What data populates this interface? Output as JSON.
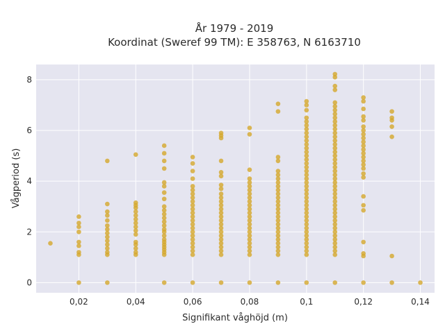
{
  "chart_data": {
    "type": "scatter",
    "title": "År 1979 - 2019",
    "subtitle": "Koordinat (Sweref 99 TM): E 358763, N 6163710",
    "xlabel": "Signifikant våghöjd (m)",
    "ylabel": "Vågperiod (s)",
    "xlim": [
      0.005,
      0.145
    ],
    "ylim": [
      -0.4,
      8.6
    ],
    "x_ticks": [
      0.02,
      0.04,
      0.06,
      0.08,
      0.1,
      0.12,
      0.14
    ],
    "x_tick_labels": [
      "0,02",
      "0,04",
      "0,06",
      "0,08",
      "0,1",
      "0,12",
      "0,14"
    ],
    "y_ticks": [
      0,
      2,
      4,
      6,
      8
    ],
    "y_tick_labels": [
      "0",
      "2",
      "4",
      "6",
      "8"
    ],
    "grid": true,
    "colors": {
      "point": "#d4a72c",
      "plot_bg": "#e5e5f0",
      "grid": "#ffffff"
    },
    "series": [
      {
        "points": [
          [
            0.01,
            1.55
          ],
          [
            0.02,
            0.0
          ],
          [
            0.02,
            1.1
          ],
          [
            0.02,
            1.2
          ],
          [
            0.02,
            1.45
          ],
          [
            0.02,
            1.6
          ],
          [
            0.02,
            2.0
          ],
          [
            0.02,
            2.2
          ],
          [
            0.02,
            2.35
          ],
          [
            0.02,
            2.6
          ],
          [
            0.03,
            0.0
          ],
          [
            0.03,
            1.1
          ],
          [
            0.03,
            1.2
          ],
          [
            0.03,
            1.35
          ],
          [
            0.03,
            1.5
          ],
          [
            0.03,
            1.65
          ],
          [
            0.03,
            1.8
          ],
          [
            0.03,
            1.95
          ],
          [
            0.03,
            2.1
          ],
          [
            0.03,
            2.25
          ],
          [
            0.03,
            2.45
          ],
          [
            0.03,
            2.65
          ],
          [
            0.03,
            2.8
          ],
          [
            0.03,
            3.1
          ],
          [
            0.03,
            4.8
          ],
          [
            0.04,
            1.1
          ],
          [
            0.04,
            1.2
          ],
          [
            0.04,
            1.35
          ],
          [
            0.04,
            1.5
          ],
          [
            0.04,
            1.6
          ],
          [
            0.04,
            1.9
          ],
          [
            0.04,
            2.05
          ],
          [
            0.04,
            2.2
          ],
          [
            0.04,
            2.35
          ],
          [
            0.04,
            2.5
          ],
          [
            0.04,
            2.65
          ],
          [
            0.04,
            2.8
          ],
          [
            0.04,
            2.95
          ],
          [
            0.04,
            3.05
          ],
          [
            0.04,
            3.15
          ],
          [
            0.04,
            5.05
          ],
          [
            0.05,
            0.0
          ],
          [
            0.05,
            1.1
          ],
          [
            0.05,
            1.2
          ],
          [
            0.05,
            1.3
          ],
          [
            0.05,
            1.4
          ],
          [
            0.05,
            1.5
          ],
          [
            0.05,
            1.6
          ],
          [
            0.05,
            1.7
          ],
          [
            0.05,
            1.85
          ],
          [
            0.05,
            2.0
          ],
          [
            0.05,
            2.1
          ],
          [
            0.05,
            2.25
          ],
          [
            0.05,
            2.4
          ],
          [
            0.05,
            2.55
          ],
          [
            0.05,
            2.7
          ],
          [
            0.05,
            2.85
          ],
          [
            0.05,
            3.0
          ],
          [
            0.05,
            3.3
          ],
          [
            0.05,
            3.55
          ],
          [
            0.05,
            3.8
          ],
          [
            0.05,
            3.95
          ],
          [
            0.05,
            4.5
          ],
          [
            0.05,
            4.8
          ],
          [
            0.05,
            5.1
          ],
          [
            0.05,
            5.4
          ],
          [
            0.06,
            0.0
          ],
          [
            0.06,
            1.1
          ],
          [
            0.06,
            1.25
          ],
          [
            0.06,
            1.4
          ],
          [
            0.06,
            1.55
          ],
          [
            0.06,
            1.7
          ],
          [
            0.06,
            1.85
          ],
          [
            0.06,
            2.0
          ],
          [
            0.06,
            2.15
          ],
          [
            0.06,
            2.3
          ],
          [
            0.06,
            2.45
          ],
          [
            0.06,
            2.6
          ],
          [
            0.06,
            2.75
          ],
          [
            0.06,
            2.9
          ],
          [
            0.06,
            3.05
          ],
          [
            0.06,
            3.2
          ],
          [
            0.06,
            3.35
          ],
          [
            0.06,
            3.5
          ],
          [
            0.06,
            3.65
          ],
          [
            0.06,
            3.8
          ],
          [
            0.06,
            4.1
          ],
          [
            0.06,
            4.4
          ],
          [
            0.06,
            4.7
          ],
          [
            0.06,
            4.95
          ],
          [
            0.07,
            0.0
          ],
          [
            0.07,
            1.1
          ],
          [
            0.07,
            1.25
          ],
          [
            0.07,
            1.4
          ],
          [
            0.07,
            1.55
          ],
          [
            0.07,
            1.7
          ],
          [
            0.07,
            1.85
          ],
          [
            0.07,
            2.0
          ],
          [
            0.07,
            2.15
          ],
          [
            0.07,
            2.3
          ],
          [
            0.07,
            2.45
          ],
          [
            0.07,
            2.6
          ],
          [
            0.07,
            2.75
          ],
          [
            0.07,
            2.9
          ],
          [
            0.07,
            3.05
          ],
          [
            0.07,
            3.2
          ],
          [
            0.07,
            3.35
          ],
          [
            0.07,
            3.5
          ],
          [
            0.07,
            3.7
          ],
          [
            0.07,
            3.85
          ],
          [
            0.07,
            4.2
          ],
          [
            0.07,
            4.35
          ],
          [
            0.07,
            4.8
          ],
          [
            0.07,
            5.7
          ],
          [
            0.07,
            5.8
          ],
          [
            0.07,
            5.9
          ],
          [
            0.08,
            0.0
          ],
          [
            0.08,
            1.1
          ],
          [
            0.08,
            1.25
          ],
          [
            0.08,
            1.4
          ],
          [
            0.08,
            1.55
          ],
          [
            0.08,
            1.7
          ],
          [
            0.08,
            1.85
          ],
          [
            0.08,
            2.0
          ],
          [
            0.08,
            2.15
          ],
          [
            0.08,
            2.3
          ],
          [
            0.08,
            2.45
          ],
          [
            0.08,
            2.6
          ],
          [
            0.08,
            2.75
          ],
          [
            0.08,
            2.9
          ],
          [
            0.08,
            3.05
          ],
          [
            0.08,
            3.2
          ],
          [
            0.08,
            3.35
          ],
          [
            0.08,
            3.5
          ],
          [
            0.08,
            3.65
          ],
          [
            0.08,
            3.8
          ],
          [
            0.08,
            3.95
          ],
          [
            0.08,
            4.1
          ],
          [
            0.08,
            4.45
          ],
          [
            0.08,
            5.85
          ],
          [
            0.08,
            6.1
          ],
          [
            0.09,
            0.0
          ],
          [
            0.09,
            1.1
          ],
          [
            0.09,
            1.25
          ],
          [
            0.09,
            1.4
          ],
          [
            0.09,
            1.55
          ],
          [
            0.09,
            1.7
          ],
          [
            0.09,
            1.85
          ],
          [
            0.09,
            2.0
          ],
          [
            0.09,
            2.15
          ],
          [
            0.09,
            2.3
          ],
          [
            0.09,
            2.45
          ],
          [
            0.09,
            2.6
          ],
          [
            0.09,
            2.75
          ],
          [
            0.09,
            2.9
          ],
          [
            0.09,
            3.05
          ],
          [
            0.09,
            3.2
          ],
          [
            0.09,
            3.35
          ],
          [
            0.09,
            3.5
          ],
          [
            0.09,
            3.65
          ],
          [
            0.09,
            3.8
          ],
          [
            0.09,
            3.95
          ],
          [
            0.09,
            4.1
          ],
          [
            0.09,
            4.25
          ],
          [
            0.09,
            4.4
          ],
          [
            0.09,
            4.8
          ],
          [
            0.09,
            4.95
          ],
          [
            0.09,
            6.75
          ],
          [
            0.09,
            7.05
          ],
          [
            0.1,
            0.0
          ],
          [
            0.1,
            1.1
          ],
          [
            0.1,
            1.25
          ],
          [
            0.1,
            1.4
          ],
          [
            0.1,
            1.55
          ],
          [
            0.1,
            1.7
          ],
          [
            0.1,
            1.85
          ],
          [
            0.1,
            2.0
          ],
          [
            0.1,
            2.15
          ],
          [
            0.1,
            2.3
          ],
          [
            0.1,
            2.45
          ],
          [
            0.1,
            2.6
          ],
          [
            0.1,
            2.75
          ],
          [
            0.1,
            2.9
          ],
          [
            0.1,
            3.05
          ],
          [
            0.1,
            3.2
          ],
          [
            0.1,
            3.35
          ],
          [
            0.1,
            3.5
          ],
          [
            0.1,
            3.65
          ],
          [
            0.1,
            3.8
          ],
          [
            0.1,
            3.95
          ],
          [
            0.1,
            4.1
          ],
          [
            0.1,
            4.25
          ],
          [
            0.1,
            4.4
          ],
          [
            0.1,
            4.55
          ],
          [
            0.1,
            4.7
          ],
          [
            0.1,
            4.85
          ],
          [
            0.1,
            5.0
          ],
          [
            0.1,
            5.15
          ],
          [
            0.1,
            5.3
          ],
          [
            0.1,
            5.45
          ],
          [
            0.1,
            5.6
          ],
          [
            0.1,
            5.75
          ],
          [
            0.1,
            5.9
          ],
          [
            0.1,
            6.05
          ],
          [
            0.1,
            6.2
          ],
          [
            0.1,
            6.35
          ],
          [
            0.1,
            6.5
          ],
          [
            0.1,
            6.8
          ],
          [
            0.1,
            7.0
          ],
          [
            0.1,
            7.15
          ],
          [
            0.11,
            0.0
          ],
          [
            0.11,
            1.1
          ],
          [
            0.11,
            1.25
          ],
          [
            0.11,
            1.4
          ],
          [
            0.11,
            1.55
          ],
          [
            0.11,
            1.7
          ],
          [
            0.11,
            1.85
          ],
          [
            0.11,
            2.0
          ],
          [
            0.11,
            2.15
          ],
          [
            0.11,
            2.3
          ],
          [
            0.11,
            2.45
          ],
          [
            0.11,
            2.6
          ],
          [
            0.11,
            2.75
          ],
          [
            0.11,
            2.9
          ],
          [
            0.11,
            3.05
          ],
          [
            0.11,
            3.2
          ],
          [
            0.11,
            3.35
          ],
          [
            0.11,
            3.5
          ],
          [
            0.11,
            3.65
          ],
          [
            0.11,
            3.8
          ],
          [
            0.11,
            3.95
          ],
          [
            0.11,
            4.1
          ],
          [
            0.11,
            4.25
          ],
          [
            0.11,
            4.4
          ],
          [
            0.11,
            4.55
          ],
          [
            0.11,
            4.7
          ],
          [
            0.11,
            4.85
          ],
          [
            0.11,
            5.0
          ],
          [
            0.11,
            5.15
          ],
          [
            0.11,
            5.3
          ],
          [
            0.11,
            5.45
          ],
          [
            0.11,
            5.6
          ],
          [
            0.11,
            5.75
          ],
          [
            0.11,
            5.9
          ],
          [
            0.11,
            6.05
          ],
          [
            0.11,
            6.2
          ],
          [
            0.11,
            6.35
          ],
          [
            0.11,
            6.5
          ],
          [
            0.11,
            6.65
          ],
          [
            0.11,
            6.8
          ],
          [
            0.11,
            6.95
          ],
          [
            0.11,
            7.1
          ],
          [
            0.11,
            7.6
          ],
          [
            0.11,
            7.75
          ],
          [
            0.11,
            8.1
          ],
          [
            0.11,
            8.22
          ],
          [
            0.12,
            0.0
          ],
          [
            0.12,
            1.05
          ],
          [
            0.12,
            1.15
          ],
          [
            0.12,
            1.6
          ],
          [
            0.12,
            2.85
          ],
          [
            0.12,
            3.05
          ],
          [
            0.12,
            3.4
          ],
          [
            0.12,
            4.15
          ],
          [
            0.12,
            4.3
          ],
          [
            0.12,
            4.5
          ],
          [
            0.12,
            4.65
          ],
          [
            0.12,
            4.8
          ],
          [
            0.12,
            4.95
          ],
          [
            0.12,
            5.1
          ],
          [
            0.12,
            5.25
          ],
          [
            0.12,
            5.4
          ],
          [
            0.12,
            5.55
          ],
          [
            0.12,
            5.7
          ],
          [
            0.12,
            5.85
          ],
          [
            0.12,
            6.0
          ],
          [
            0.12,
            6.15
          ],
          [
            0.12,
            6.4
          ],
          [
            0.12,
            6.55
          ],
          [
            0.12,
            6.85
          ],
          [
            0.12,
            7.15
          ],
          [
            0.12,
            7.3
          ],
          [
            0.13,
            0.0
          ],
          [
            0.13,
            1.05
          ],
          [
            0.13,
            5.75
          ],
          [
            0.13,
            6.15
          ],
          [
            0.13,
            6.4
          ],
          [
            0.13,
            6.5
          ],
          [
            0.13,
            6.75
          ],
          [
            0.14,
            0.0
          ]
        ]
      }
    ]
  }
}
